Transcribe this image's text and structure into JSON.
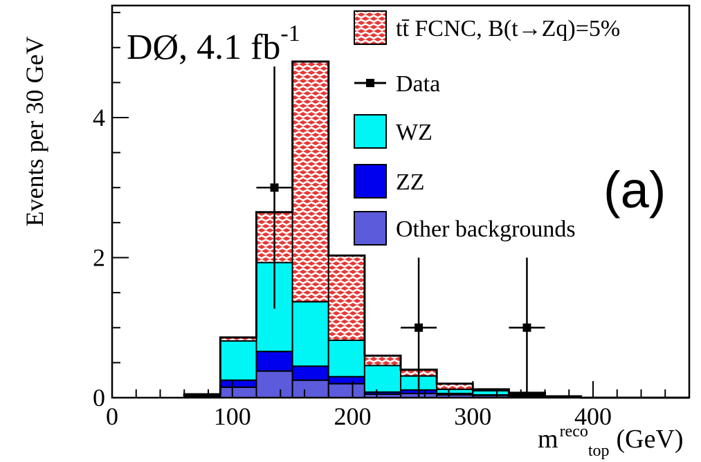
{
  "chart_data": {
    "type": "bar",
    "stacked": true,
    "annotation": {
      "experiment": "DØ, 4.1 fb",
      "experiment_sup": "-1",
      "panel": "(a)"
    },
    "xlabel": {
      "main": "m",
      "sup": "reco",
      "sub": "top",
      "unit": "(GeV)"
    },
    "ylabel": "Events per 30 GeV",
    "xlim": [
      0,
      480
    ],
    "ylim": [
      0,
      5.6
    ],
    "x_ticks": [
      0,
      100,
      200,
      300,
      400
    ],
    "x_tick_labels": [
      "0",
      "100",
      "200",
      "300",
      "400"
    ],
    "y_ticks": [
      0,
      2,
      4
    ],
    "y_tick_labels": [
      "0",
      "2",
      "4"
    ],
    "bin_edges": [
      60,
      90,
      120,
      150,
      180,
      210,
      240,
      270,
      300,
      330,
      360,
      390,
      420,
      450,
      480
    ],
    "series": [
      {
        "name": "Other backgrounds",
        "color": "#5b5bdc",
        "values": [
          0.02,
          0.15,
          0.38,
          0.25,
          0.2,
          0.05,
          0.06,
          0.04,
          0.03,
          0.02,
          0.01,
          0.0,
          0.0,
          0.0
        ]
      },
      {
        "name": "ZZ",
        "color": "#0000ee",
        "values": [
          0.01,
          0.1,
          0.28,
          0.2,
          0.1,
          0.03,
          0.05,
          0.02,
          0.01,
          0.01,
          0.0,
          0.0,
          0.0,
          0.0
        ]
      },
      {
        "name": "WZ",
        "color": "#00f5f5",
        "values": [
          0.02,
          0.56,
          1.27,
          0.92,
          0.52,
          0.38,
          0.2,
          0.06,
          0.06,
          0.02,
          0.01,
          0.0,
          0.0,
          0.0
        ]
      },
      {
        "name": "tt̄ FCNC, B(t→Zq)=5%",
        "color": "#e53935",
        "pattern": "checker",
        "values": [
          0.0,
          0.05,
          0.72,
          3.43,
          1.21,
          0.14,
          0.09,
          0.08,
          0.02,
          0.02,
          0.0,
          0.0,
          0.0,
          0.0
        ]
      }
    ],
    "data_points": [
      {
        "x": 135,
        "y": 3,
        "xerr": 15,
        "ylo": 1.27,
        "yhi": 4.73
      },
      {
        "x": 255,
        "y": 1,
        "xerr": 15,
        "ylo": 0.0,
        "yhi": 2.0
      },
      {
        "x": 345,
        "y": 1,
        "xerr": 15,
        "ylo": 0.0,
        "yhi": 2.0
      }
    ],
    "legend": {
      "position": "top-right",
      "entries": [
        {
          "label": "tt̄ FCNC, B(t→Zq)=5%",
          "kind": "pattern"
        },
        {
          "label": "Data",
          "kind": "marker"
        },
        {
          "label": "WZ",
          "kind": "fill",
          "color": "#00f5f5"
        },
        {
          "label": "ZZ",
          "kind": "fill",
          "color": "#0000ee"
        },
        {
          "label": "Other backgrounds",
          "kind": "fill",
          "color": "#5b5bdc"
        }
      ]
    }
  }
}
